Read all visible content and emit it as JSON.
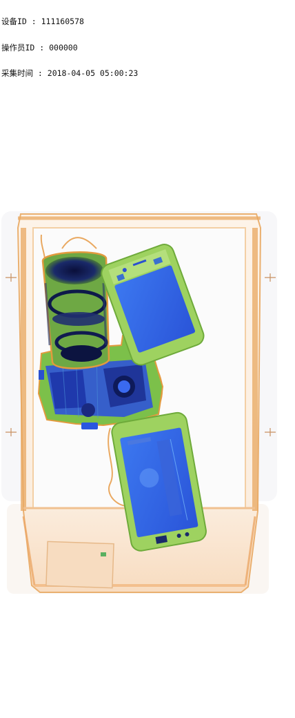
{
  "overlay": {
    "device_line": "设备ID : 111160578",
    "operator_line": "操作员ID : 000000",
    "time_line": "采集时间 : 2018-04-05 05:00:23"
  },
  "scan": {
    "colors": {
      "background": "#ffffff",
      "tray_outline": "#e8a050",
      "tray_fill": "#fbe9d4",
      "organic_orange": "#e59a3e",
      "mixed_green": "#8ccb52",
      "metal_blue": "#2a55e0",
      "dense_dark": "#101a5a"
    },
    "items": [
      "camera-body",
      "camera-lens",
      "phone-top",
      "phone-bottom",
      "tray-label"
    ]
  }
}
